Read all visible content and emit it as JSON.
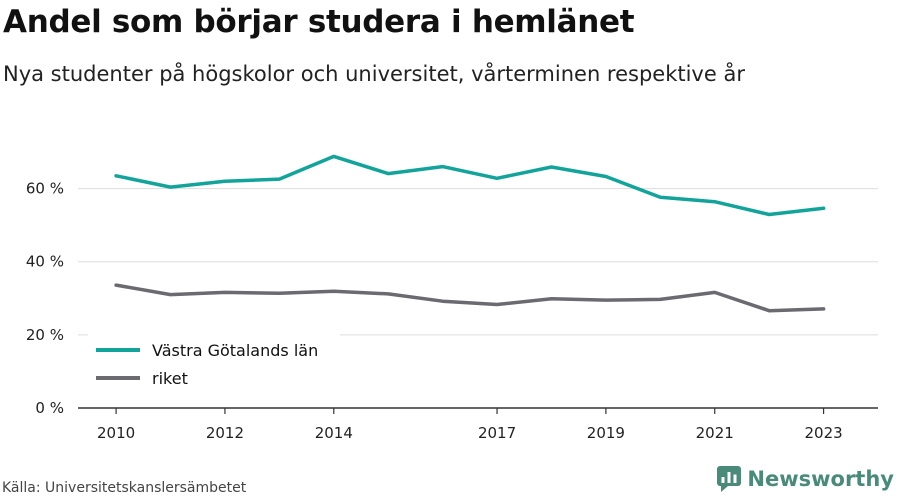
{
  "header": {
    "title": "Andel som börjar studera i hemlänet",
    "subtitle": "Nya studenter på högskolor och universitet, vårterminen respektive år"
  },
  "footer": {
    "source": "Källa: Universitetskanslersämbetet",
    "brand": "Newsworthy"
  },
  "colors": {
    "series_teal": "#12a49a",
    "series_grey": "#6a6a70",
    "grid": "#dddddd",
    "axis": "#333333",
    "brand": "#4a8a7a"
  },
  "chart_data": {
    "type": "line",
    "title": "Andel som börjar studera i hemlänet",
    "subtitle": "Nya studenter på högskolor och universitet, vårterminen respektive år",
    "xlabel": "",
    "ylabel": "",
    "x": [
      2010,
      2011,
      2012,
      2013,
      2014,
      2015,
      2016,
      2017,
      2018,
      2019,
      2020,
      2021,
      2022,
      2023
    ],
    "xticks": [
      2010,
      2012,
      2014,
      2017,
      2019,
      2021,
      2023
    ],
    "yticks": [
      0,
      20,
      40,
      60
    ],
    "ytick_labels": [
      "0 %",
      "20 %",
      "40 %",
      "60 %"
    ],
    "ylim": [
      0,
      70
    ],
    "xlim": [
      2009.3,
      2024
    ],
    "grid": true,
    "legend_position": "bottom-left",
    "series": [
      {
        "name": "Västra Götalands län",
        "color": "#12a49a",
        "values": [
          63.5,
          60.4,
          62.0,
          62.6,
          68.8,
          64.1,
          66.0,
          62.8,
          65.9,
          63.3,
          57.6,
          56.4,
          52.9,
          54.6
        ]
      },
      {
        "name": "riket",
        "color": "#6a6a70",
        "values": [
          33.6,
          31.0,
          31.6,
          31.4,
          31.9,
          31.2,
          29.2,
          28.3,
          29.9,
          29.5,
          29.7,
          31.6,
          26.6,
          27.1
        ]
      }
    ]
  }
}
